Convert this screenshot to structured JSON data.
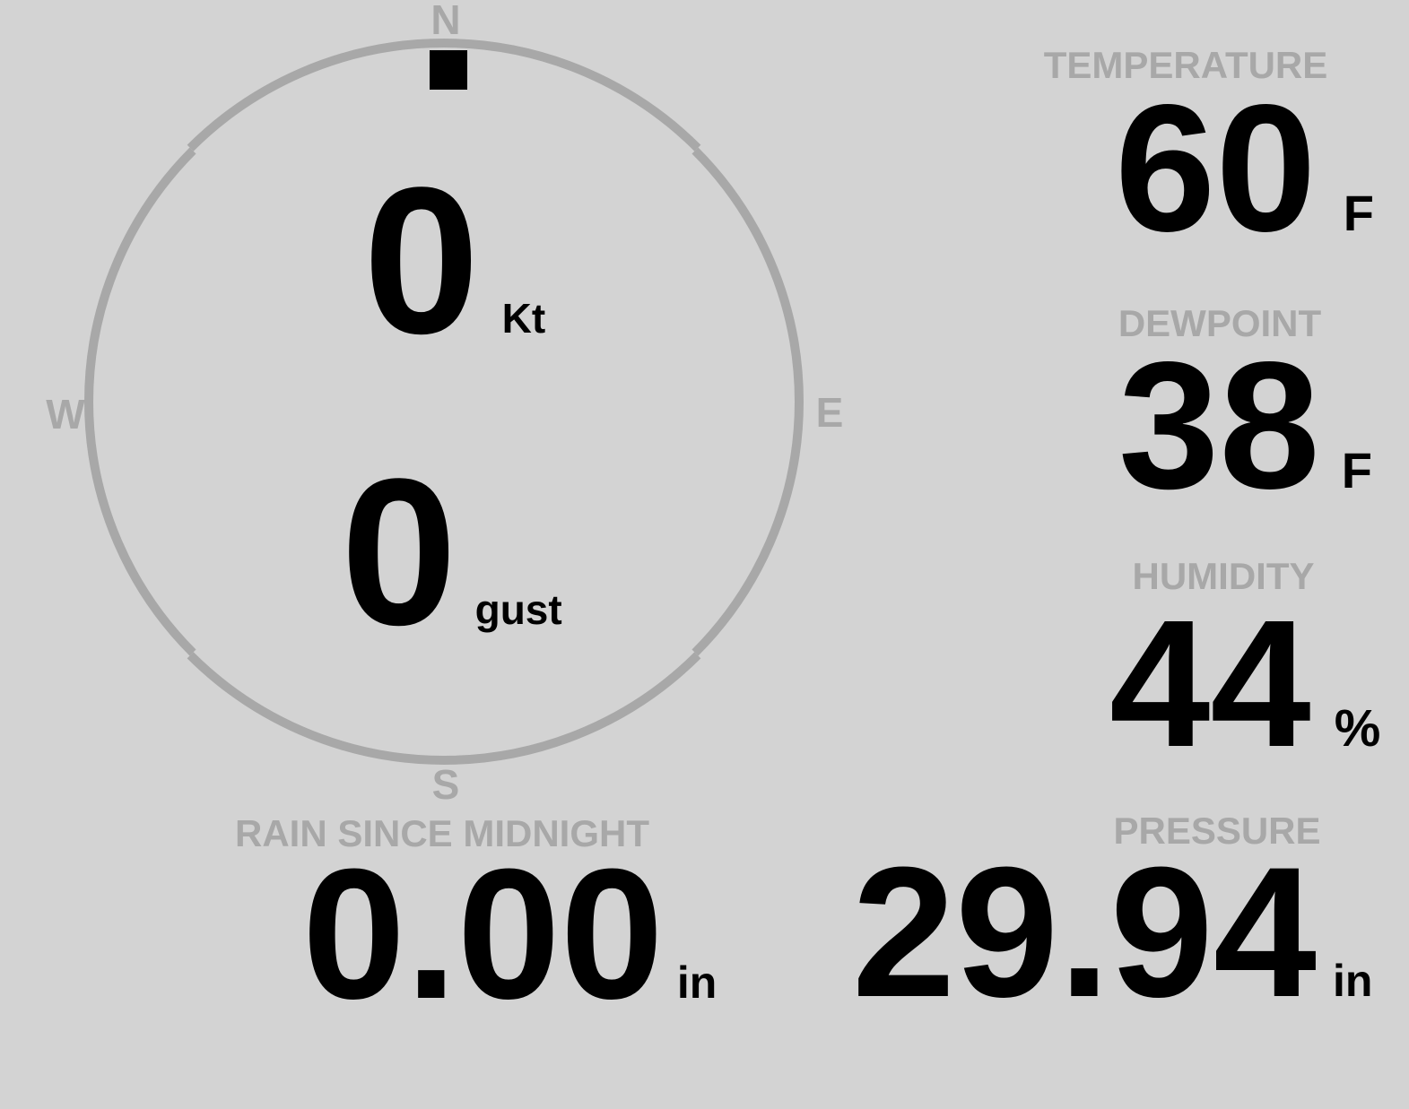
{
  "colors": {
    "background": "#d3d3d3",
    "muted": "#a8a8a8",
    "value-color": "#000000"
  },
  "compass": {
    "labels": {
      "north": "N",
      "east": "E",
      "south": "S",
      "west": "W"
    },
    "wind_direction_deg": 0,
    "speed_value": "0",
    "speed_unit": "Kt",
    "gust_value": "0",
    "gust_unit": "gust"
  },
  "metrics": {
    "temperature": {
      "label": "TEMPERATURE",
      "value": "60",
      "unit": "F"
    },
    "dewpoint": {
      "label": "DEWPOINT",
      "value": "38",
      "unit": "F"
    },
    "humidity": {
      "label": "HUMIDITY",
      "value": "44",
      "unit": "%"
    },
    "rain_since_midnight": {
      "label": "RAIN SINCE MIDNIGHT",
      "value": "0.00",
      "unit": "in"
    },
    "pressure": {
      "label": "PRESSURE",
      "value": "29.94",
      "unit": "in"
    }
  }
}
